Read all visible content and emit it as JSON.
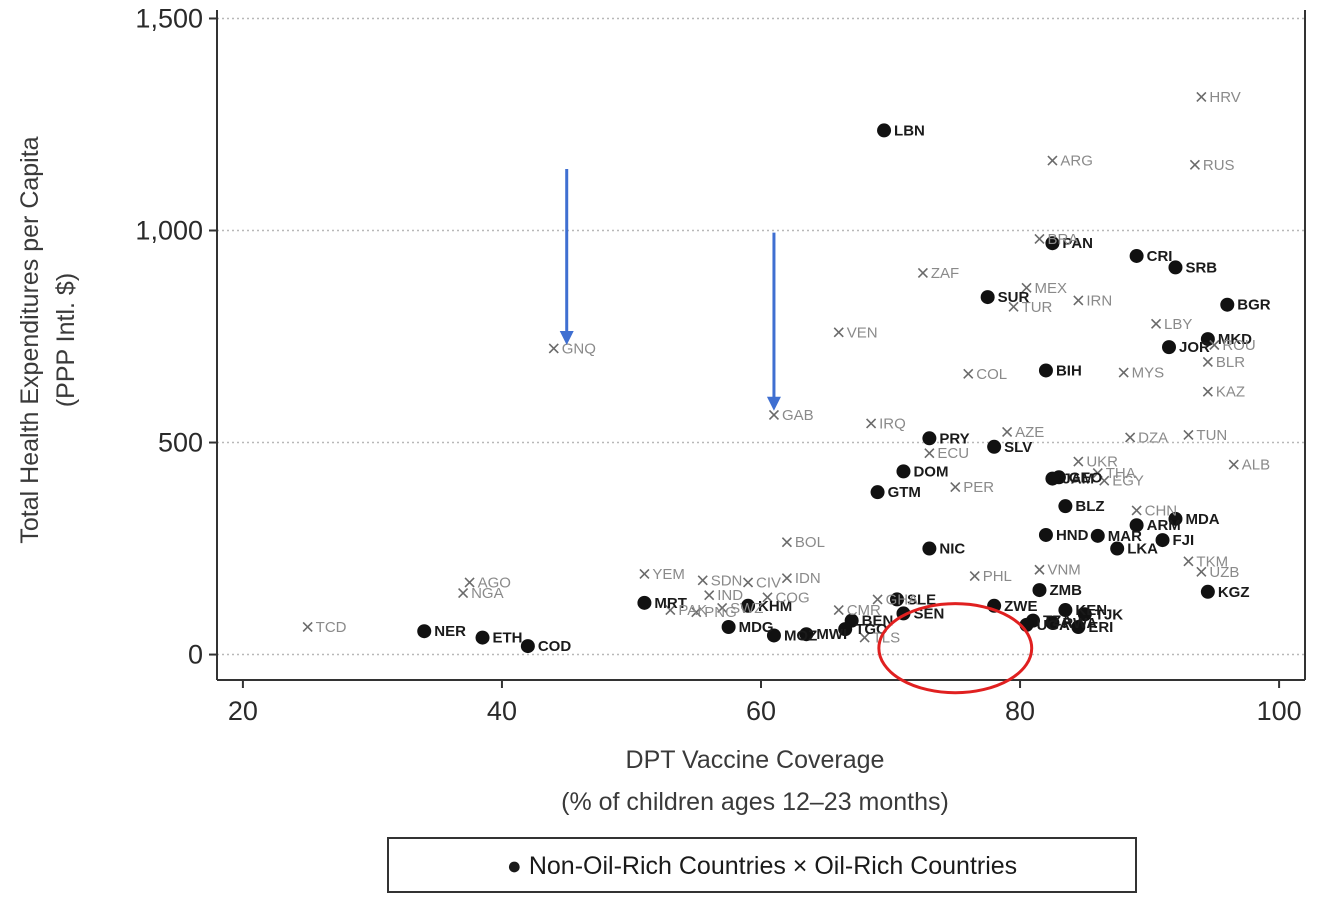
{
  "chart_data": {
    "type": "scatter",
    "xlabel_lines": [
      "DPT Vaccine Coverage",
      "(% of children ages 12–23 months)"
    ],
    "ylabel_lines": [
      "Total Health Expenditures per Capita",
      "(PPP Intl. $)"
    ],
    "xlim": [
      18,
      102
    ],
    "ylim": [
      -60,
      1520
    ],
    "x_ticks": [
      20,
      40,
      60,
      80,
      100
    ],
    "x_tick_labels": [
      "20",
      "40",
      "60",
      "80",
      "100"
    ],
    "y_ticks": [
      0,
      500,
      1000,
      1500
    ],
    "y_tick_labels": [
      "0",
      "500",
      "1,000",
      "1,500"
    ],
    "grid": "horizontal dotted",
    "legend_text": "● Non-Oil-Rich Countries × Oil-Rich Countries",
    "series": [
      {
        "name": "Non-Oil-Rich Countries",
        "marker": "dot",
        "color": "#111111",
        "points": [
          {
            "label": "LBN",
            "x": 69.5,
            "y": 1236
          },
          {
            "label": "PAN",
            "x": 82.5,
            "y": 970
          },
          {
            "label": "CRI",
            "x": 89,
            "y": 940
          },
          {
            "label": "SRB",
            "x": 92,
            "y": 913
          },
          {
            "label": "SUR",
            "x": 77.5,
            "y": 843
          },
          {
            "label": "BGR",
            "x": 96,
            "y": 825
          },
          {
            "label": "MKD",
            "x": 94.5,
            "y": 744
          },
          {
            "label": "JOR",
            "x": 91.5,
            "y": 725
          },
          {
            "label": "BIH",
            "x": 82,
            "y": 670
          },
          {
            "label": "PRY",
            "x": 73,
            "y": 510
          },
          {
            "label": "SLV",
            "x": 78,
            "y": 490
          },
          {
            "label": "DOM",
            "x": 71,
            "y": 432
          },
          {
            "label": "GEO",
            "x": 83,
            "y": 418
          },
          {
            "label": "JAM",
            "x": 82.5,
            "y": 415
          },
          {
            "label": "GTM",
            "x": 69,
            "y": 383
          },
          {
            "label": "BLZ",
            "x": 83.5,
            "y": 350
          },
          {
            "label": "MDA",
            "x": 92,
            "y": 320
          },
          {
            "label": "ARM",
            "x": 89,
            "y": 305
          },
          {
            "label": "FJI",
            "x": 91,
            "y": 270
          },
          {
            "label": "HND",
            "x": 82,
            "y": 282
          },
          {
            "label": "MAR",
            "x": 86,
            "y": 280
          },
          {
            "label": "LKA",
            "x": 87.5,
            "y": 250
          },
          {
            "label": "NIC",
            "x": 73,
            "y": 250
          },
          {
            "label": "KGZ",
            "x": 94.5,
            "y": 148
          },
          {
            "label": "ZMB",
            "x": 81.5,
            "y": 152
          },
          {
            "label": "ZWE",
            "x": 78,
            "y": 115
          },
          {
            "label": "MRT",
            "x": 51,
            "y": 122
          },
          {
            "label": "KHM",
            "x": 59,
            "y": 115
          },
          {
            "label": "SLE",
            "x": 70.5,
            "y": 130
          },
          {
            "label": "SEN",
            "x": 71,
            "y": 97
          },
          {
            "label": "KEN",
            "x": 83.5,
            "y": 105
          },
          {
            "label": "TJK",
            "x": 85,
            "y": 95
          },
          {
            "label": "NER",
            "x": 34,
            "y": 55
          },
          {
            "label": "ETH",
            "x": 38.5,
            "y": 40
          },
          {
            "label": "COD",
            "x": 42,
            "y": 20
          },
          {
            "label": "MDG",
            "x": 57.5,
            "y": 65
          },
          {
            "label": "MOZ",
            "x": 61,
            "y": 45
          },
          {
            "label": "MWI",
            "x": 63.5,
            "y": 48
          },
          {
            "label": "BEN",
            "x": 67,
            "y": 80
          },
          {
            "label": "TGO",
            "x": 66.5,
            "y": 60
          },
          {
            "label": "TZA",
            "x": 81,
            "y": 80
          },
          {
            "label": "RWA",
            "x": 82.5,
            "y": 75
          },
          {
            "label": "ERI",
            "x": 84.5,
            "y": 65
          },
          {
            "label": "UGA",
            "x": 80.5,
            "y": 70
          }
        ]
      },
      {
        "name": "Oil-Rich Countries",
        "marker": "x",
        "color": "#707070",
        "points": [
          {
            "label": "HRV",
            "x": 94,
            "y": 1315
          },
          {
            "label": "ARG",
            "x": 82.5,
            "y": 1165
          },
          {
            "label": "RUS",
            "x": 93.5,
            "y": 1155
          },
          {
            "label": "BRA",
            "x": 81.5,
            "y": 980
          },
          {
            "label": "ZAF",
            "x": 72.5,
            "y": 900
          },
          {
            "label": "MEX",
            "x": 80.5,
            "y": 865
          },
          {
            "label": "TUR",
            "x": 79.5,
            "y": 820
          },
          {
            "label": "IRN",
            "x": 84.5,
            "y": 835
          },
          {
            "label": "LBY",
            "x": 90.5,
            "y": 780
          },
          {
            "label": "VEN",
            "x": 66,
            "y": 760
          },
          {
            "label": "ROU",
            "x": 95,
            "y": 730
          },
          {
            "label": "GNQ",
            "x": 44,
            "y": 722
          },
          {
            "label": "BLR",
            "x": 94.5,
            "y": 690
          },
          {
            "label": "COL",
            "x": 76,
            "y": 662
          },
          {
            "label": "MYS",
            "x": 88,
            "y": 665
          },
          {
            "label": "KAZ",
            "x": 94.5,
            "y": 620
          },
          {
            "label": "GAB",
            "x": 61,
            "y": 565
          },
          {
            "label": "IRQ",
            "x": 68.5,
            "y": 545
          },
          {
            "label": "AZE",
            "x": 79,
            "y": 525
          },
          {
            "label": "DZA",
            "x": 88.5,
            "y": 512
          },
          {
            "label": "TUN",
            "x": 93,
            "y": 518
          },
          {
            "label": "ECU",
            "x": 73,
            "y": 475
          },
          {
            "label": "UKR",
            "x": 84.5,
            "y": 455
          },
          {
            "label": "ALB",
            "x": 96.5,
            "y": 448
          },
          {
            "label": "THA",
            "x": 86,
            "y": 428
          },
          {
            "label": "EGY",
            "x": 86.5,
            "y": 410
          },
          {
            "label": "PER",
            "x": 75,
            "y": 395
          },
          {
            "label": "CHN",
            "x": 89,
            "y": 340
          },
          {
            "label": "BOL",
            "x": 62,
            "y": 265
          },
          {
            "label": "TKM",
            "x": 93,
            "y": 220
          },
          {
            "label": "UZB",
            "x": 94,
            "y": 195
          },
          {
            "label": "VNM",
            "x": 81.5,
            "y": 200
          },
          {
            "label": "PHL",
            "x": 76.5,
            "y": 185
          },
          {
            "label": "YEM",
            "x": 51,
            "y": 190
          },
          {
            "label": "SDN",
            "x": 55.5,
            "y": 175
          },
          {
            "label": "IDN",
            "x": 62,
            "y": 180
          },
          {
            "label": "CIV",
            "x": 59,
            "y": 170
          },
          {
            "label": "AGO",
            "x": 37.5,
            "y": 170
          },
          {
            "label": "NGA",
            "x": 37,
            "y": 145
          },
          {
            "label": "IND",
            "x": 56,
            "y": 140
          },
          {
            "label": "COG",
            "x": 60.5,
            "y": 135
          },
          {
            "label": "GHA",
            "x": 69,
            "y": 130
          },
          {
            "label": "PAK",
            "x": 53,
            "y": 105
          },
          {
            "label": "PNG",
            "x": 55,
            "y": 100
          },
          {
            "label": "TCD",
            "x": 25,
            "y": 65
          },
          {
            "label": "TLS",
            "x": 68,
            "y": 40
          },
          {
            "label": "CMR",
            "x": 66,
            "y": 105
          },
          {
            "label": "SWZ",
            "x": 57,
            "y": 110
          }
        ]
      }
    ],
    "annotations": [
      {
        "type": "arrow",
        "color": "#3f6fd1",
        "from": {
          "x": 45,
          "y": 1145
        },
        "to": {
          "x": 45,
          "y": 730
        }
      },
      {
        "type": "arrow",
        "color": "#3f6fd1",
        "from": {
          "x": 61,
          "y": 995
        },
        "to": {
          "x": 61,
          "y": 575
        }
      },
      {
        "type": "ellipse",
        "color": "#e02020",
        "center": {
          "x": 75,
          "y": 15
        },
        "radii": {
          "x": 5.9,
          "y": 105
        }
      }
    ]
  }
}
